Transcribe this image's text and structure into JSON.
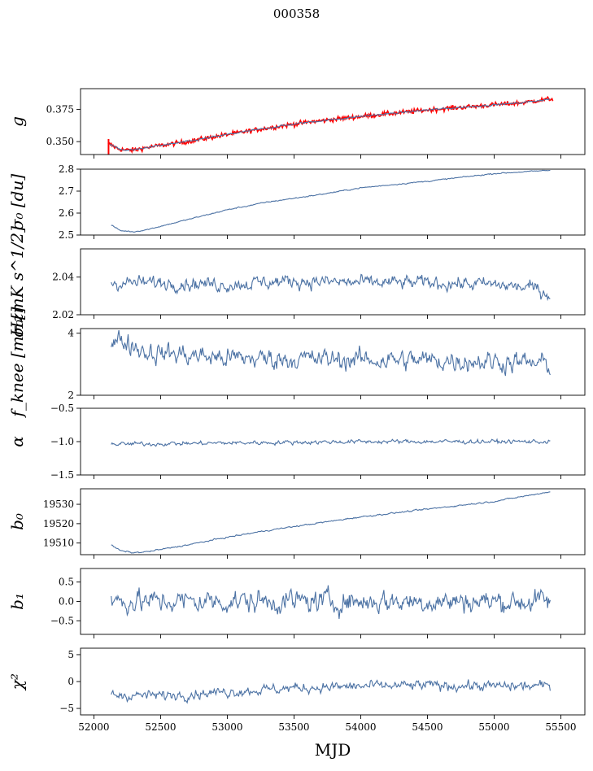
{
  "figure": {
    "title": "000358",
    "xlabel": "MJD",
    "colors": {
      "series": "#4c72a4",
      "gain_overlay": "#ff0000",
      "frame": "#000000"
    }
  },
  "chart_data": [
    {
      "type": "line",
      "name": "gain",
      "ylabel": "g",
      "xlim": [
        51900,
        55680
      ],
      "ylim": [
        0.34,
        0.391
      ],
      "yticks": [
        0.35,
        0.375
      ],
      "ytick_labels": [
        "0.350",
        "0.375"
      ],
      "x_range": [
        52120,
        55420
      ],
      "trend": [
        [
          52120,
          0.348
        ],
        [
          52180,
          0.3445
        ],
        [
          52230,
          0.3435
        ],
        [
          52300,
          0.3435
        ],
        [
          52400,
          0.3455
        ],
        [
          52700,
          0.35
        ],
        [
          53000,
          0.3555
        ],
        [
          53300,
          0.3605
        ],
        [
          53600,
          0.365
        ],
        [
          54000,
          0.3695
        ],
        [
          54500,
          0.3745
        ],
        [
          55000,
          0.3785
        ],
        [
          55200,
          0.38
        ],
        [
          55420,
          0.383
        ]
      ],
      "noise": 0.0006,
      "overlay": {
        "name": "gain-red",
        "noise": 0.0009,
        "x_range": [
          52105,
          55440
        ]
      }
    },
    {
      "type": "line",
      "name": "sigma0-du",
      "ylabel": "σ₀ [du]",
      "xlim": [
        51900,
        55680
      ],
      "ylim": [
        2.5,
        2.8
      ],
      "yticks": [
        2.5,
        2.6,
        2.7,
        2.8
      ],
      "ytick_labels": [
        "2.5",
        "2.6",
        "2.7",
        "2.8"
      ],
      "x_range": [
        52130,
        55420
      ],
      "trend": [
        [
          52130,
          2.545
        ],
        [
          52200,
          2.52
        ],
        [
          52300,
          2.515
        ],
        [
          52400,
          2.525
        ],
        [
          52700,
          2.57
        ],
        [
          53000,
          2.615
        ],
        [
          53300,
          2.65
        ],
        [
          53700,
          2.685
        ],
        [
          54000,
          2.715
        ],
        [
          54500,
          2.745
        ],
        [
          55000,
          2.78
        ],
        [
          55420,
          2.795
        ]
      ],
      "noise": 0.0025
    },
    {
      "type": "line",
      "name": "sigma0-mk",
      "ylabel": "σ₀[mK s^1/2]",
      "xlim": [
        51900,
        55680
      ],
      "ylim": [
        2.02,
        2.055
      ],
      "yticks": [
        2.02,
        2.04
      ],
      "ytick_labels": [
        "2.02",
        "2.04"
      ],
      "x_range": [
        52130,
        55420
      ],
      "trend": [
        [
          52130,
          2.037
        ],
        [
          52600,
          2.037
        ],
        [
          53000,
          2.036
        ],
        [
          53500,
          2.038
        ],
        [
          54000,
          2.037
        ],
        [
          54500,
          2.037
        ],
        [
          55000,
          2.036
        ],
        [
          55300,
          2.034
        ],
        [
          55420,
          2.031
        ]
      ],
      "noise": 0.0035
    },
    {
      "type": "line",
      "name": "fknee",
      "ylabel": "f_knee [mHz]",
      "xlim": [
        51900,
        55680
      ],
      "ylim": [
        2.0,
        4.15
      ],
      "yticks": [
        2,
        4
      ],
      "ytick_labels": [
        "2",
        "4"
      ],
      "x_range": [
        52130,
        55420
      ],
      "trend": [
        [
          52130,
          3.6
        ],
        [
          52200,
          3.8
        ],
        [
          52400,
          3.4
        ],
        [
          53000,
          3.2
        ],
        [
          54000,
          3.15
        ],
        [
          55000,
          3.1
        ],
        [
          55420,
          3.0
        ]
      ],
      "noise": 0.32
    },
    {
      "type": "line",
      "name": "alpha",
      "ylabel": "α",
      "xlim": [
        51900,
        55680
      ],
      "ylim": [
        -1.5,
        -0.5
      ],
      "yticks": [
        -1.5,
        -1.0,
        -0.5
      ],
      "ytick_labels": [
        "−1.5",
        "−1.0",
        "−0.5"
      ],
      "x_range": [
        52130,
        55420
      ],
      "trend": [
        [
          52130,
          -1.04
        ],
        [
          53000,
          -1.02
        ],
        [
          54000,
          -1.0
        ],
        [
          55420,
          -1.0
        ]
      ],
      "noise": 0.03
    },
    {
      "type": "line",
      "name": "b0",
      "ylabel": "b₀",
      "xlim": [
        51900,
        55680
      ],
      "ylim": [
        19504,
        19538
      ],
      "yticks": [
        19510,
        19520,
        19530
      ],
      "ytick_labels": [
        "19510",
        "19520",
        "19530"
      ],
      "x_range": [
        52130,
        55420
      ],
      "trend": [
        [
          52130,
          19509
        ],
        [
          52200,
          19506
        ],
        [
          52300,
          19505
        ],
        [
          52400,
          19505.5
        ],
        [
          52700,
          19509
        ],
        [
          53000,
          19513
        ],
        [
          53300,
          19516.5
        ],
        [
          53700,
          19520.5
        ],
        [
          54000,
          19523.5
        ],
        [
          54500,
          19527.5
        ],
        [
          55000,
          19531.5
        ],
        [
          55420,
          19536.5
        ]
      ],
      "noise": 0.35
    },
    {
      "type": "line",
      "name": "b1",
      "ylabel": "b₁",
      "xlim": [
        51900,
        55680
      ],
      "ylim": [
        -0.85,
        0.85
      ],
      "yticks": [
        -0.5,
        0.0,
        0.5
      ],
      "ytick_labels": [
        "−0.5",
        "0.0",
        "0.5"
      ],
      "x_range": [
        52130,
        55420
      ],
      "trend": [
        [
          52130,
          0.0
        ],
        [
          55420,
          0.0
        ]
      ],
      "noise": 0.28
    },
    {
      "type": "line",
      "name": "chi2",
      "ylabel": "χ²",
      "xlim": [
        51900,
        55680
      ],
      "ylim": [
        -6.2,
        6.2
      ],
      "yticks": [
        -5,
        0,
        5
      ],
      "ytick_labels": [
        "−5",
        "0",
        "5"
      ],
      "x_range": [
        52130,
        55420
      ],
      "trend": [
        [
          52130,
          -2.5
        ],
        [
          52500,
          -2.6
        ],
        [
          53000,
          -1.9
        ],
        [
          53500,
          -1.2
        ],
        [
          54000,
          -0.9
        ],
        [
          54500,
          -0.7
        ],
        [
          55000,
          -0.9
        ],
        [
          55420,
          -0.8
        ]
      ],
      "noise": 0.9
    }
  ],
  "xaxis": {
    "ticks": [
      52000,
      52500,
      53000,
      53500,
      54000,
      54500,
      55000,
      55500
    ],
    "tick_labels": [
      "52000",
      "52500",
      "53000",
      "53500",
      "54000",
      "54500",
      "55000",
      "55500"
    ]
  }
}
